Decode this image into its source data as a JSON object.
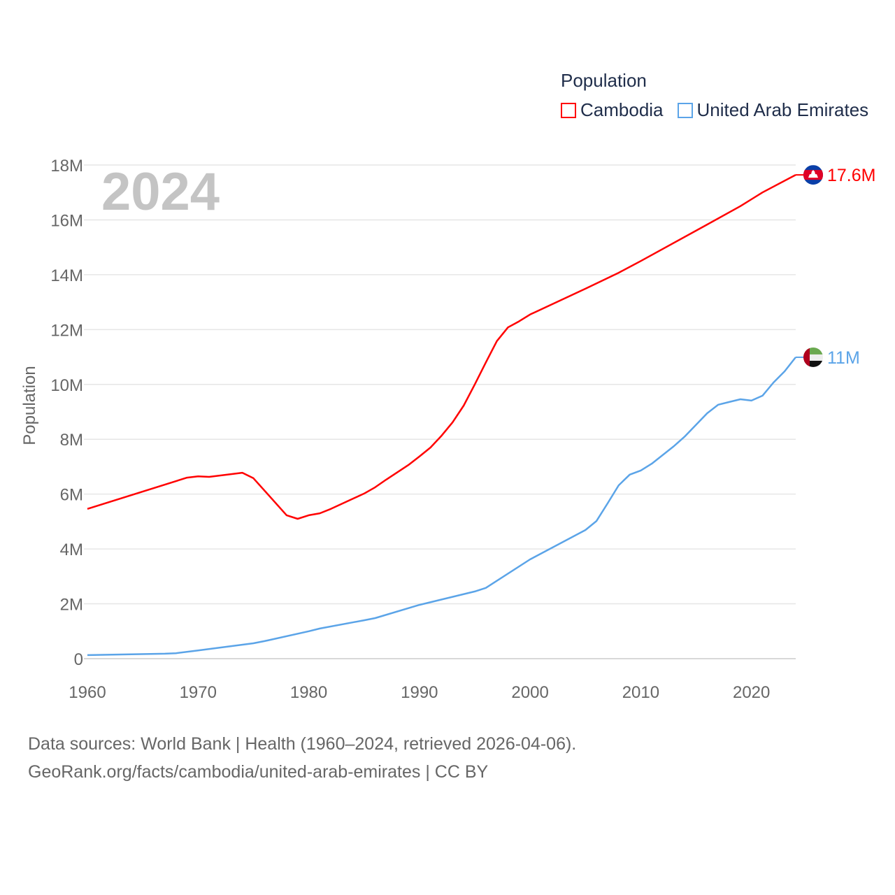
{
  "chart_data": {
    "type": "line",
    "year_label": "2024",
    "ylabel": "Population",
    "xlim": [
      1960,
      2024
    ],
    "ylim": [
      0,
      18000000
    ],
    "grid": true,
    "legend": {
      "title": "Population",
      "placement": "top-right"
    },
    "x_ticks": [
      "1960",
      "1970",
      "1980",
      "1990",
      "2000",
      "2010",
      "2020"
    ],
    "x_tick_values": [
      1960,
      1970,
      1980,
      1990,
      2000,
      2010,
      2020
    ],
    "y_ticks": [
      "0",
      "2M",
      "4M",
      "6M",
      "8M",
      "10M",
      "12M",
      "14M",
      "16M",
      "18M"
    ],
    "y_tick_values": [
      0,
      2000000,
      4000000,
      6000000,
      8000000,
      10000000,
      12000000,
      14000000,
      16000000,
      18000000
    ],
    "series": [
      {
        "name": "Cambodia",
        "color": "#ff0000",
        "end_label": "17.6M",
        "flag": "cambodia-flag",
        "x": [
          1960,
          1969,
          1970,
          1971,
          1974,
          1975,
          1978,
          1979,
          1980,
          1981,
          1982,
          1985,
          1986,
          1987,
          1989,
          1990,
          1991,
          1992,
          1993,
          1994,
          1995,
          1996,
          1997,
          1998,
          1999,
          2000,
          2005,
          2008,
          2010,
          2016,
          2019,
          2020,
          2021,
          2024
        ],
        "values": [
          5.46,
          6.6,
          6.65,
          6.63,
          6.78,
          6.58,
          5.23,
          5.1,
          5.23,
          5.3,
          5.46,
          6.02,
          6.25,
          6.53,
          7.06,
          7.37,
          7.7,
          8.13,
          8.62,
          9.23,
          10.0,
          10.8,
          11.58,
          12.08,
          12.3,
          12.55,
          13.49,
          14.07,
          14.5,
          15.83,
          16.5,
          16.75,
          17.0,
          17.64
        ],
        "value_unit": "million"
      },
      {
        "name": "United Arab Emirates",
        "color": "#5ba4e8",
        "end_label": "11M",
        "flag": "uae-flag",
        "x": [
          1960,
          1967,
          1968,
          1970,
          1975,
          1976,
          1980,
          1981,
          1985,
          1986,
          1990,
          1995,
          1996,
          2000,
          2005,
          2006,
          2007,
          2008,
          2009,
          2010,
          2011,
          2013,
          2014,
          2016,
          2017,
          2018,
          2019,
          2020,
          2021,
          2022,
          2023,
          2024
        ],
        "values": [
          0.13,
          0.18,
          0.2,
          0.3,
          0.56,
          0.64,
          1.0,
          1.1,
          1.4,
          1.48,
          1.96,
          2.45,
          2.58,
          3.62,
          4.69,
          5.02,
          5.66,
          6.32,
          6.71,
          6.86,
          7.11,
          7.75,
          8.11,
          8.95,
          9.26,
          9.36,
          9.46,
          9.41,
          9.59,
          10.07,
          10.48,
          10.99
        ],
        "value_unit": "million"
      }
    ]
  },
  "footer": {
    "line1": "Data sources: World Bank | Health (1960–2024, retrieved 2026-04-06).",
    "line2": "GeoRank.org/facts/cambodia/united-arab-emirates | CC BY"
  }
}
